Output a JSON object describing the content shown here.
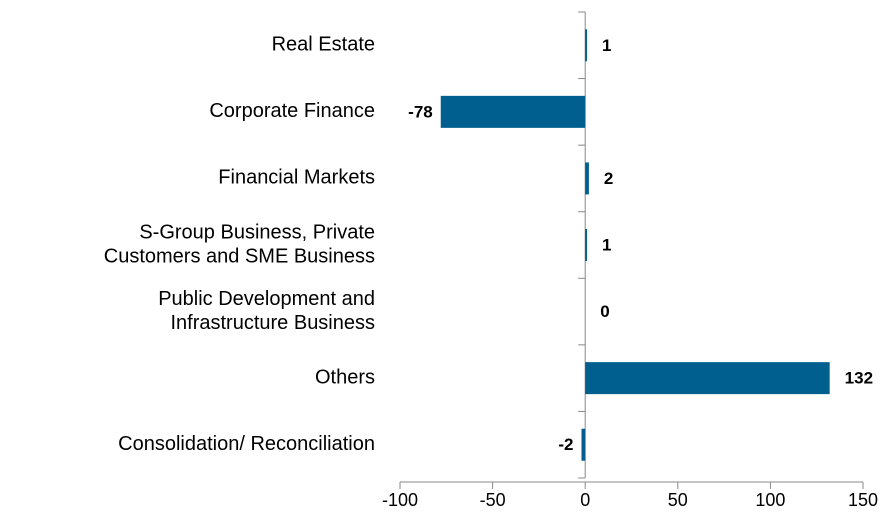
{
  "chart_data": {
    "type": "hbar",
    "categories": [
      [
        "Real Estate"
      ],
      [
        "Corporate Finance"
      ],
      [
        "Financial Markets"
      ],
      [
        "S-Group Business, Private",
        "Customers and SME Business"
      ],
      [
        "Public Development and",
        "Infrastructure Business"
      ],
      [
        "Others"
      ],
      [
        "Consolidation/ Reconciliation"
      ]
    ],
    "values": [
      1,
      -78,
      2,
      1,
      0,
      132,
      -2
    ],
    "color": "#005f8f",
    "xlim": [
      -100,
      150
    ],
    "xticks": [
      -100,
      -50,
      0,
      50,
      100,
      150
    ]
  }
}
